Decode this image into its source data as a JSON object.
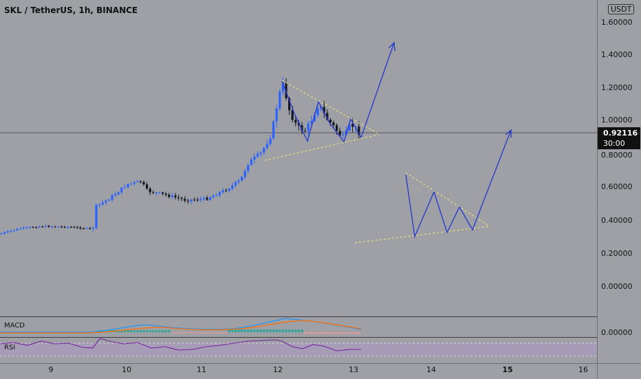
{
  "header": {
    "title": "SKL / TetherUS, 1h, BINANCE",
    "unit_button": "USDT"
  },
  "price_axis": {
    "labels": [
      "1.60000",
      "1.40000",
      "1.20000",
      "1.00000",
      "0.80000",
      "0.60000",
      "0.40000",
      "0.20000",
      "0.00000"
    ]
  },
  "current_price": {
    "value": "0.92116",
    "countdown": "30:00"
  },
  "macd": {
    "label": "MACD",
    "axis_value": "0.00000"
  },
  "rsi": {
    "label": "RSI"
  },
  "time_axis": {
    "labels": [
      "9",
      "10",
      "11",
      "12",
      "13",
      "14",
      "15",
      "16"
    ],
    "bold_label": "15"
  },
  "colors": {
    "up": "#2962ff",
    "down": "#131722",
    "arrow": "#2a3dc9",
    "trendline": "#e9df7e",
    "rsi": "#7b1fa2",
    "macd": "#2196f3",
    "signal": "#ff6d00"
  }
}
